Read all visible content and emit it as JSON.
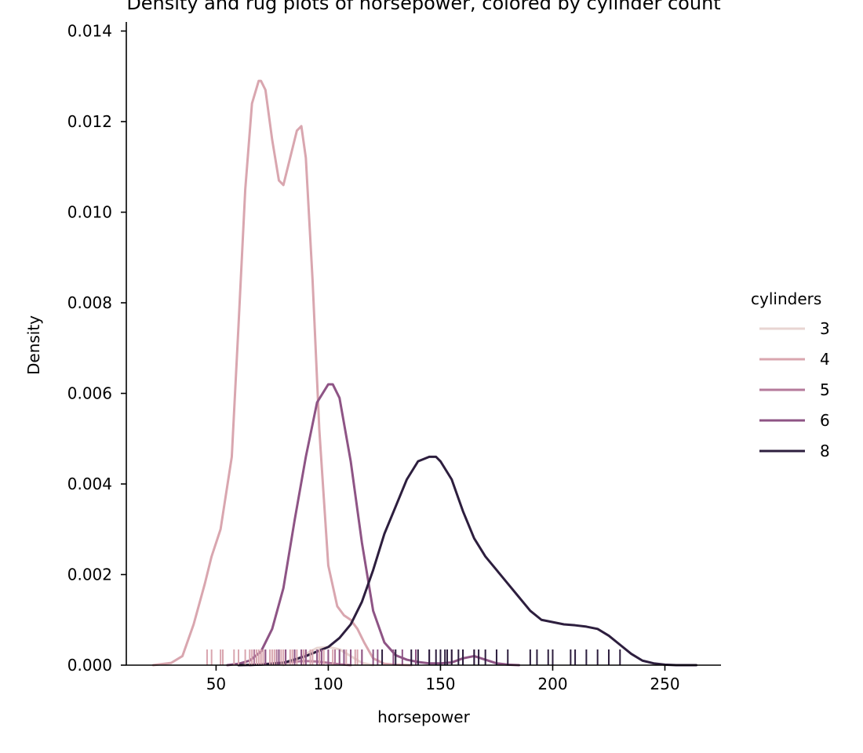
{
  "chart_data": {
    "type": "line",
    "title": "Density and rug plots of horsepower, colored by cylinder count",
    "xlabel": "horsepower",
    "ylabel": "Density",
    "xlim": [
      10,
      275
    ],
    "ylim": [
      0,
      0.0142
    ],
    "xticks": [
      50,
      100,
      150,
      200,
      250
    ],
    "xtick_labels": [
      "50",
      "100",
      "150",
      "200",
      "250"
    ],
    "yticks": [
      0,
      0.002,
      0.004,
      0.006,
      0.008,
      0.01,
      0.012,
      0.014
    ],
    "ytick_labels": [
      "0.000",
      "0.002",
      "0.004",
      "0.006",
      "0.008",
      "0.010",
      "0.012",
      "0.014"
    ],
    "grid": false,
    "legend": {
      "title": "cylinders",
      "placement": "right"
    },
    "series": [
      {
        "name": "3",
        "color": "#e8d5d2",
        "x": [
          80,
          85,
          90,
          95,
          100,
          105,
          110,
          115,
          120
        ],
        "y": [
          0.0,
          0.0001,
          0.00025,
          0.00038,
          0.0004,
          0.00035,
          0.0002,
          5e-05,
          0.0
        ],
        "rug": [
          90,
          97,
          100,
          110
        ]
      },
      {
        "name": "4",
        "color": "#d9a6af",
        "x": [
          22,
          30,
          35,
          40,
          45,
          48,
          52,
          57,
          60,
          63,
          66,
          69,
          70,
          72,
          75,
          78,
          80,
          83,
          86,
          88,
          90,
          93,
          96,
          100,
          104,
          107,
          110,
          113,
          116,
          120,
          125,
          130,
          137
        ],
        "y": [
          0.0,
          5e-05,
          0.0002,
          0.0009,
          0.0018,
          0.0024,
          0.003,
          0.0046,
          0.0075,
          0.0105,
          0.0124,
          0.0129,
          0.0129,
          0.0127,
          0.0116,
          0.0107,
          0.0106,
          0.0112,
          0.0118,
          0.0119,
          0.0112,
          0.0085,
          0.0052,
          0.0022,
          0.0013,
          0.0011,
          0.001,
          0.0008,
          0.0005,
          0.00015,
          3e-05,
          1e-05,
          0.0
        ],
        "rug": [
          46,
          48,
          52,
          53,
          58,
          60,
          63,
          65,
          66,
          67,
          68,
          69,
          70,
          70,
          71,
          72,
          74,
          75,
          76,
          78,
          79,
          80,
          81,
          83,
          84,
          85,
          86,
          88,
          88,
          89,
          90,
          92,
          93,
          95,
          95,
          96,
          97,
          98,
          100,
          102,
          105,
          108,
          110,
          112,
          113,
          115
        ]
      },
      {
        "name": "5",
        "color": "#b57a9b",
        "x": [
          65,
          70,
          75,
          80,
          85,
          90,
          95,
          100,
          105,
          110
        ],
        "y": [
          0.0,
          2e-05,
          4e-05,
          6e-05,
          8e-05,
          9e-05,
          8e-05,
          5e-05,
          2e-05,
          0.0
        ],
        "rug": [
          67,
          77,
          103
        ]
      },
      {
        "name": "6",
        "color": "#8e5485",
        "x": [
          55,
          60,
          65,
          70,
          75,
          80,
          85,
          90,
          95,
          100,
          102,
          105,
          110,
          115,
          120,
          125,
          130,
          135,
          140,
          145,
          150,
          155,
          160,
          165,
          170,
          175,
          180,
          185
        ],
        "y": [
          0.0,
          3e-05,
          0.0001,
          0.0003,
          0.0008,
          0.0017,
          0.0032,
          0.0046,
          0.0058,
          0.0062,
          0.0062,
          0.0059,
          0.0045,
          0.0027,
          0.0012,
          0.0005,
          0.00022,
          0.00012,
          7e-05,
          4e-05,
          4e-05,
          6e-05,
          0.00015,
          0.0002,
          0.00012,
          4e-05,
          1e-05,
          0.0
        ],
        "rug": [
          72,
          78,
          81,
          85,
          88,
          90,
          95,
          97,
          100,
          105,
          107,
          110,
          115,
          120,
          122,
          129,
          133,
          139,
          145,
          155,
          160,
          165
        ]
      },
      {
        "name": "8",
        "color": "#2d1e3e",
        "x": [
          60,
          70,
          80,
          90,
          100,
          105,
          110,
          115,
          120,
          125,
          130,
          135,
          140,
          145,
          148,
          150,
          155,
          160,
          165,
          170,
          175,
          180,
          185,
          190,
          195,
          200,
          205,
          210,
          215,
          220,
          225,
          230,
          235,
          240,
          245,
          250,
          255,
          260,
          264
        ],
        "y": [
          0.0,
          1e-05,
          5e-05,
          0.0002,
          0.0004,
          0.0006,
          0.0009,
          0.0014,
          0.0021,
          0.0029,
          0.0035,
          0.0041,
          0.0045,
          0.0046,
          0.0046,
          0.0045,
          0.0041,
          0.0034,
          0.0028,
          0.0024,
          0.0021,
          0.0018,
          0.0015,
          0.0012,
          0.001,
          0.00095,
          0.0009,
          0.00088,
          0.00085,
          0.0008,
          0.00065,
          0.00045,
          0.00025,
          0.0001,
          4e-05,
          1e-05,
          0.0,
          0.0,
          0.0
        ],
        "rug": [
          124,
          130,
          137,
          140,
          145,
          148,
          150,
          152,
          153,
          155,
          158,
          160,
          165,
          167,
          170,
          175,
          180,
          190,
          193,
          198,
          200,
          208,
          210,
          215,
          220,
          225,
          230
        ]
      }
    ]
  }
}
